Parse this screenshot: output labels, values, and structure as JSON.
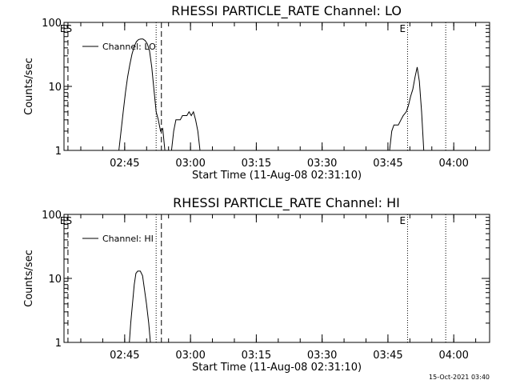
{
  "chart_data": [
    {
      "type": "line",
      "title": "RHESSI PARTICLE_RATE Channel: LO",
      "xlabel": "Start Time (11-Aug-08 02:31:10)",
      "ylabel": "Counts/sec",
      "y_scale": "log",
      "ylim": [
        1,
        100
      ],
      "y_ticks": [
        "1",
        "10",
        "100"
      ],
      "xlim_min": [
        0,
        97
      ],
      "x_ticks": [
        {
          "label": "02:45",
          "t": 13.83
        },
        {
          "label": "03:00",
          "t": 28.83
        },
        {
          "label": "03:15",
          "t": 43.83
        },
        {
          "label": "03:30",
          "t": 58.83
        },
        {
          "label": "03:45",
          "t": 73.83
        },
        {
          "label": "04:00",
          "t": 88.83
        }
      ],
      "legend": {
        "label": "Channel: LO",
        "position": "top-left"
      },
      "markers": [
        {
          "label": "ES",
          "t": 0.9,
          "style": "dashed"
        },
        {
          "label": "",
          "t": 21.0,
          "style": "dotted"
        },
        {
          "label": "",
          "t": 22.2,
          "style": "dashed"
        },
        {
          "label": "E",
          "t": 78.3,
          "style": "dotted"
        },
        {
          "label": "",
          "t": 87.0,
          "style": "dotted"
        }
      ],
      "series": [
        {
          "segments": [
            [
              [
                12.5,
                1
              ],
              [
                13.0,
                2
              ],
              [
                13.5,
                4
              ],
              [
                14.0,
                8
              ],
              [
                14.5,
                14
              ],
              [
                15.0,
                22
              ],
              [
                15.5,
                32
              ],
              [
                16.0,
                42
              ],
              [
                16.5,
                50
              ],
              [
                17.0,
                54
              ],
              [
                17.5,
                55
              ],
              [
                18.0,
                55
              ],
              [
                18.5,
                52
              ],
              [
                19.0,
                46
              ],
              [
                19.5,
                36
              ],
              [
                20.0,
                20
              ],
              [
                20.5,
                9
              ],
              [
                21.0,
                4
              ],
              [
                21.5,
                3
              ],
              [
                22.0,
                2
              ],
              [
                22.5,
                2.2
              ],
              [
                23.0,
                1
              ]
            ],
            [
              [
                24.5,
                1
              ],
              [
                25.0,
                2
              ],
              [
                25.5,
                3
              ],
              [
                26.5,
                3
              ],
              [
                27.0,
                3.5
              ],
              [
                28.0,
                3.5
              ],
              [
                28.5,
                4
              ],
              [
                29.0,
                3.5
              ],
              [
                29.5,
                4
              ],
              [
                30.0,
                3
              ],
              [
                30.5,
                2
              ],
              [
                31.0,
                1
              ]
            ],
            [
              [
                74.2,
                1
              ],
              [
                74.7,
                2
              ],
              [
                75.2,
                2.5
              ],
              [
                76.2,
                2.5
              ],
              [
                76.8,
                3
              ],
              [
                77.3,
                3.5
              ],
              [
                78.0,
                4
              ],
              [
                78.5,
                5
              ],
              [
                79.0,
                7
              ],
              [
                79.5,
                9
              ],
              [
                80.0,
                14
              ],
              [
                80.5,
                20
              ],
              [
                81.0,
                12
              ],
              [
                81.5,
                4
              ],
              [
                82.0,
                1
              ]
            ]
          ]
        }
      ]
    },
    {
      "type": "line",
      "title": "RHESSI PARTICLE_RATE Channel: HI",
      "xlabel": "Start Time (11-Aug-08 02:31:10)",
      "ylabel": "Counts/sec",
      "y_scale": "log",
      "ylim": [
        1,
        100
      ],
      "y_ticks": [
        "1",
        "10",
        "100"
      ],
      "xlim_min": [
        0,
        97
      ],
      "x_ticks": [
        {
          "label": "02:45",
          "t": 13.83
        },
        {
          "label": "03:00",
          "t": 28.83
        },
        {
          "label": "03:15",
          "t": 43.83
        },
        {
          "label": "03:30",
          "t": 58.83
        },
        {
          "label": "03:45",
          "t": 73.83
        },
        {
          "label": "04:00",
          "t": 88.83
        }
      ],
      "legend": {
        "label": "Channel: HI",
        "position": "top-left"
      },
      "markers": [
        {
          "label": "ES",
          "t": 0.9,
          "style": "dashed"
        },
        {
          "label": "",
          "t": 21.0,
          "style": "dotted"
        },
        {
          "label": "",
          "t": 22.2,
          "style": "dashed"
        },
        {
          "label": "E",
          "t": 78.3,
          "style": "dotted"
        },
        {
          "label": "",
          "t": 87.0,
          "style": "dotted"
        }
      ],
      "series": [
        {
          "segments": [
            [
              [
                14.9,
                1
              ],
              [
                15.2,
                2
              ],
              [
                15.6,
                4
              ],
              [
                16.0,
                8
              ],
              [
                16.4,
                12
              ],
              [
                16.8,
                13
              ],
              [
                17.4,
                13
              ],
              [
                17.9,
                11
              ],
              [
                18.3,
                7
              ],
              [
                18.8,
                4
              ],
              [
                19.3,
                2
              ],
              [
                19.7,
                1
              ]
            ]
          ]
        }
      ]
    }
  ],
  "footer": {
    "stamp": "15-Oct-2021 03:40"
  }
}
